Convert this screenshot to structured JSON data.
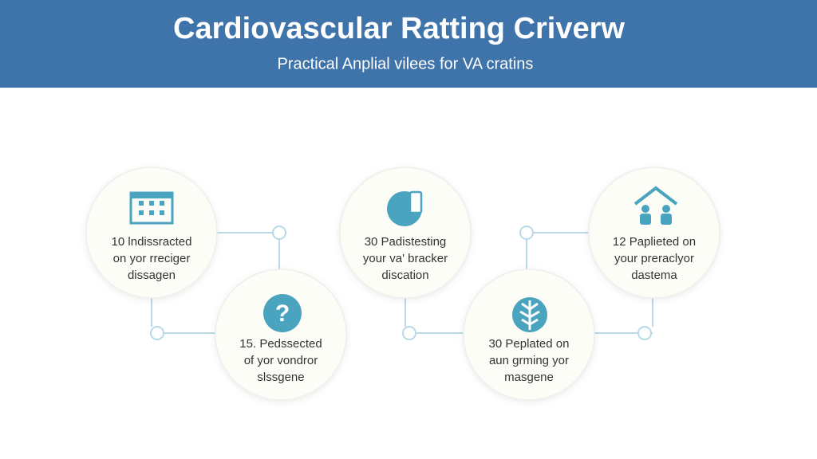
{
  "header": {
    "title": "Cardiovascular Ratting Criverw",
    "subtitle": "Practical Anplial vilees for VA cratins"
  },
  "nodes": [
    {
      "lines": [
        "10 lndissracted",
        "on yor rreciger",
        "dissagen"
      ]
    },
    {
      "lines": [
        "15. Pedssected",
        "of yor vondror",
        "slssgene"
      ]
    },
    {
      "lines": [
        "30 Padistesting",
        "your va' bracker",
        "discation"
      ]
    },
    {
      "lines": [
        "30 Peplated on",
        "aun grming yor",
        "masgene"
      ]
    },
    {
      "lines": [
        "12 Paplieted on",
        "your preraclyor",
        "dastema"
      ]
    }
  ]
}
